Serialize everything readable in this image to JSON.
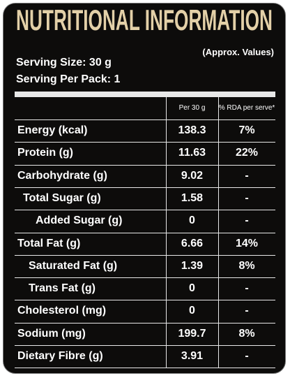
{
  "header": {
    "title": "NUTRITIONAL INFORMATION",
    "note": "(Approx. Values)",
    "serving_size": "Serving Size: 30 g",
    "serving_per_pack": "Serving Per Pack: 1"
  },
  "table": {
    "columns": [
      "Per 30 g",
      "% RDA per serve*"
    ],
    "rows": [
      [
        "Energy (kcal)",
        "138.3",
        "7%"
      ],
      [
        "Protein (g)",
        "11.63",
        "22%"
      ],
      [
        "Carbohydrate (g)",
        "9.02",
        "-"
      ],
      [
        "Total Sugar (g)",
        "1.58",
        "-"
      ],
      [
        "Added Sugar (g)",
        "0",
        "-"
      ],
      [
        "Total Fat (g)",
        "6.66",
        "14%"
      ],
      [
        "Saturated Fat (g)",
        "1.39",
        "8%"
      ],
      [
        "Trans Fat (g)",
        "0",
        "-"
      ],
      [
        "Cholesterol (mg)",
        "0",
        "-"
      ],
      [
        "Sodium (mg)",
        "199.7",
        "8%"
      ],
      [
        "Dietary Fibre (g)",
        "3.91",
        "-"
      ]
    ]
  }
}
